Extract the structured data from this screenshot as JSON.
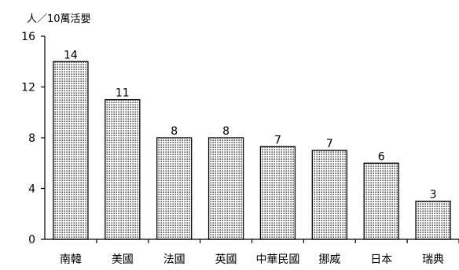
{
  "chart_data": {
    "type": "bar",
    "title": "",
    "unit_label": "人／10萬活嬰",
    "categories": [
      "南韓",
      "美國",
      "法國",
      "英國",
      "中華民國",
      "挪威",
      "日本",
      "瑞典"
    ],
    "values": [
      14,
      11,
      8,
      8,
      7.3,
      7,
      6,
      3
    ],
    "value_labels": [
      "14",
      "11",
      "8",
      "8",
      "7",
      "7",
      "6",
      "3"
    ],
    "xlabel": "",
    "ylabel": "",
    "ylim": [
      0,
      16
    ],
    "yticks": [
      0,
      4,
      8,
      12,
      16
    ],
    "ytick_labels": [
      "0",
      "4",
      "8",
      "12",
      "16"
    ],
    "grid": false,
    "legend": "none",
    "bar_fill": "dotted",
    "colors": {
      "bar_stroke": "#000000",
      "dot": "#000000",
      "axis": "#000000"
    }
  }
}
